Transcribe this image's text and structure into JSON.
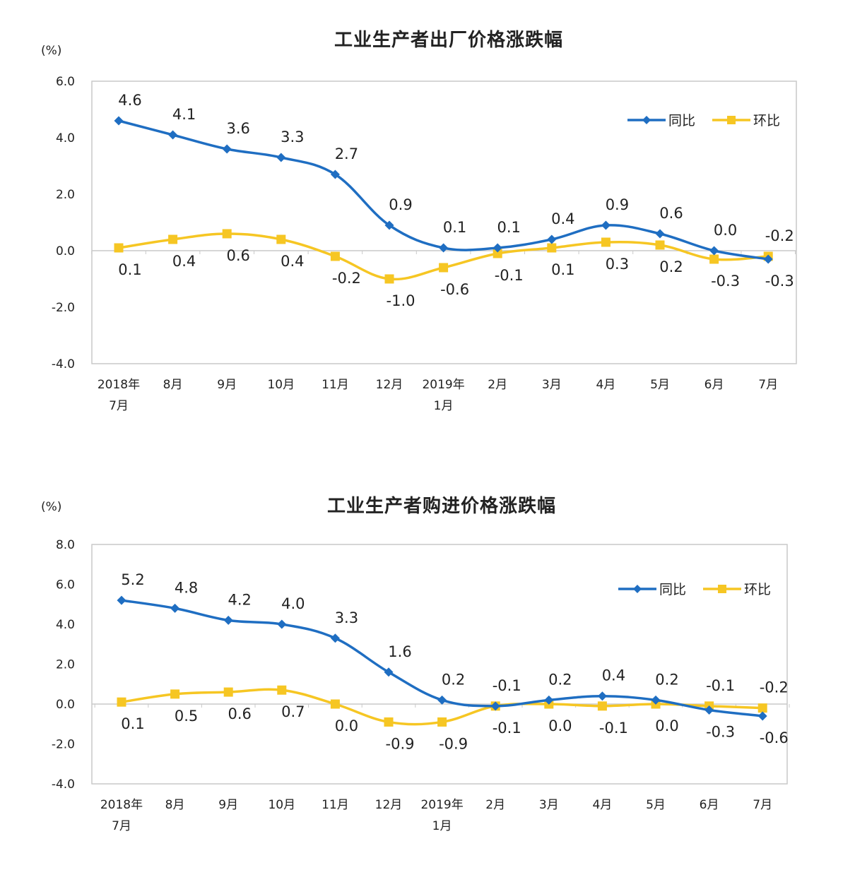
{
  "chart_data": [
    {
      "type": "line",
      "title": "工业生产者出厂价格涨跌幅",
      "ylabel": "(%)",
      "xlabel": "",
      "ylim": [
        -4.0,
        6.0
      ],
      "yticks": [
        "6.0",
        "4.0",
        "2.0",
        "0.0",
        "-2.0",
        "-4.0"
      ],
      "ytick_values": [
        6,
        4,
        2,
        0,
        -2,
        -4
      ],
      "categories": [
        [
          "2018年",
          "7月"
        ],
        [
          "8月"
        ],
        [
          "9月"
        ],
        [
          "10月"
        ],
        [
          "11月"
        ],
        [
          "12月"
        ],
        [
          "2019年",
          "1月"
        ],
        [
          "2月"
        ],
        [
          "3月"
        ],
        [
          "4月"
        ],
        [
          "5月"
        ],
        [
          "6月"
        ],
        [
          "7月"
        ]
      ],
      "legend_position": "top-right",
      "series": [
        {
          "name": "同比",
          "color": "#1f6ec2",
          "marker": "diamond",
          "values": [
            4.6,
            4.1,
            3.6,
            3.3,
            2.7,
            0.9,
            0.1,
            0.1,
            0.4,
            0.9,
            0.6,
            0.0,
            -0.3
          ],
          "labels": [
            "4.6",
            "4.1",
            "3.6",
            "3.3",
            "2.7",
            "0.9",
            "0.1",
            "0.1",
            "0.4",
            "0.9",
            "0.6",
            "0.0",
            "-0.3"
          ],
          "label_side": [
            "above",
            "above",
            "above",
            "above",
            "above",
            "above",
            "above",
            "above",
            "above",
            "above",
            "above",
            "above",
            "below"
          ]
        },
        {
          "name": "环比",
          "color": "#f6c623",
          "marker": "square",
          "values": [
            0.1,
            0.4,
            0.6,
            0.4,
            -0.2,
            -1.0,
            -0.6,
            -0.1,
            0.1,
            0.3,
            0.2,
            -0.3,
            -0.2
          ],
          "labels": [
            "0.1",
            "0.4",
            "0.6",
            "0.4",
            "-0.2",
            "-1.0",
            "-0.6",
            "-0.1",
            "0.1",
            "0.3",
            "0.2",
            "-0.3",
            "-0.2"
          ],
          "label_side": [
            "below",
            "below",
            "below",
            "below",
            "below",
            "below",
            "below",
            "below",
            "below",
            "below",
            "below",
            "below",
            "above"
          ]
        }
      ]
    },
    {
      "type": "line",
      "title": "工业生产者购进价格涨跌幅",
      "ylabel": "(%)",
      "xlabel": "",
      "ylim": [
        -4.0,
        8.0
      ],
      "yticks": [
        "8.0",
        "6.0",
        "4.0",
        "2.0",
        "0.0",
        "-2.0",
        "-4.0"
      ],
      "ytick_values": [
        8,
        6,
        4,
        2,
        0,
        -2,
        -4
      ],
      "categories": [
        [
          "2018年",
          "7月"
        ],
        [
          "8月"
        ],
        [
          "9月"
        ],
        [
          "10月"
        ],
        [
          "11月"
        ],
        [
          "12月"
        ],
        [
          "2019年",
          "1月"
        ],
        [
          "2月"
        ],
        [
          "3月"
        ],
        [
          "4月"
        ],
        [
          "5月"
        ],
        [
          "6月"
        ],
        [
          "7月"
        ]
      ],
      "legend_position": "top-right",
      "series": [
        {
          "name": "同比",
          "color": "#1f6ec2",
          "marker": "diamond",
          "values": [
            5.2,
            4.8,
            4.2,
            4.0,
            3.3,
            1.6,
            0.2,
            -0.1,
            0.2,
            0.4,
            0.2,
            -0.3,
            -0.6
          ],
          "labels": [
            "5.2",
            "4.8",
            "4.2",
            "4.0",
            "3.3",
            "1.6",
            "0.2",
            "-0.1",
            "0.2",
            "0.4",
            "0.2",
            "-0.3",
            "-0.6"
          ],
          "label_side": [
            "above",
            "above",
            "above",
            "above",
            "above",
            "above",
            "above",
            "below",
            "above",
            "above",
            "above",
            "below",
            "below"
          ]
        },
        {
          "name": "环比",
          "color": "#f6c623",
          "marker": "square",
          "values": [
            0.1,
            0.5,
            0.6,
            0.7,
            0.0,
            -0.9,
            -0.9,
            -0.1,
            0.0,
            -0.1,
            0.0,
            -0.1,
            -0.2
          ],
          "labels": [
            "0.1",
            "0.5",
            "0.6",
            "0.7",
            "0.0",
            "-0.9",
            "-0.9",
            "-0.1",
            "0.0",
            "-0.1",
            "0.0",
            "-0.1",
            "-0.2"
          ],
          "label_side": [
            "below",
            "below",
            "below",
            "below",
            "below",
            "below",
            "below",
            "above",
            "below",
            "below",
            "below",
            "above",
            "above"
          ]
        }
      ]
    }
  ]
}
